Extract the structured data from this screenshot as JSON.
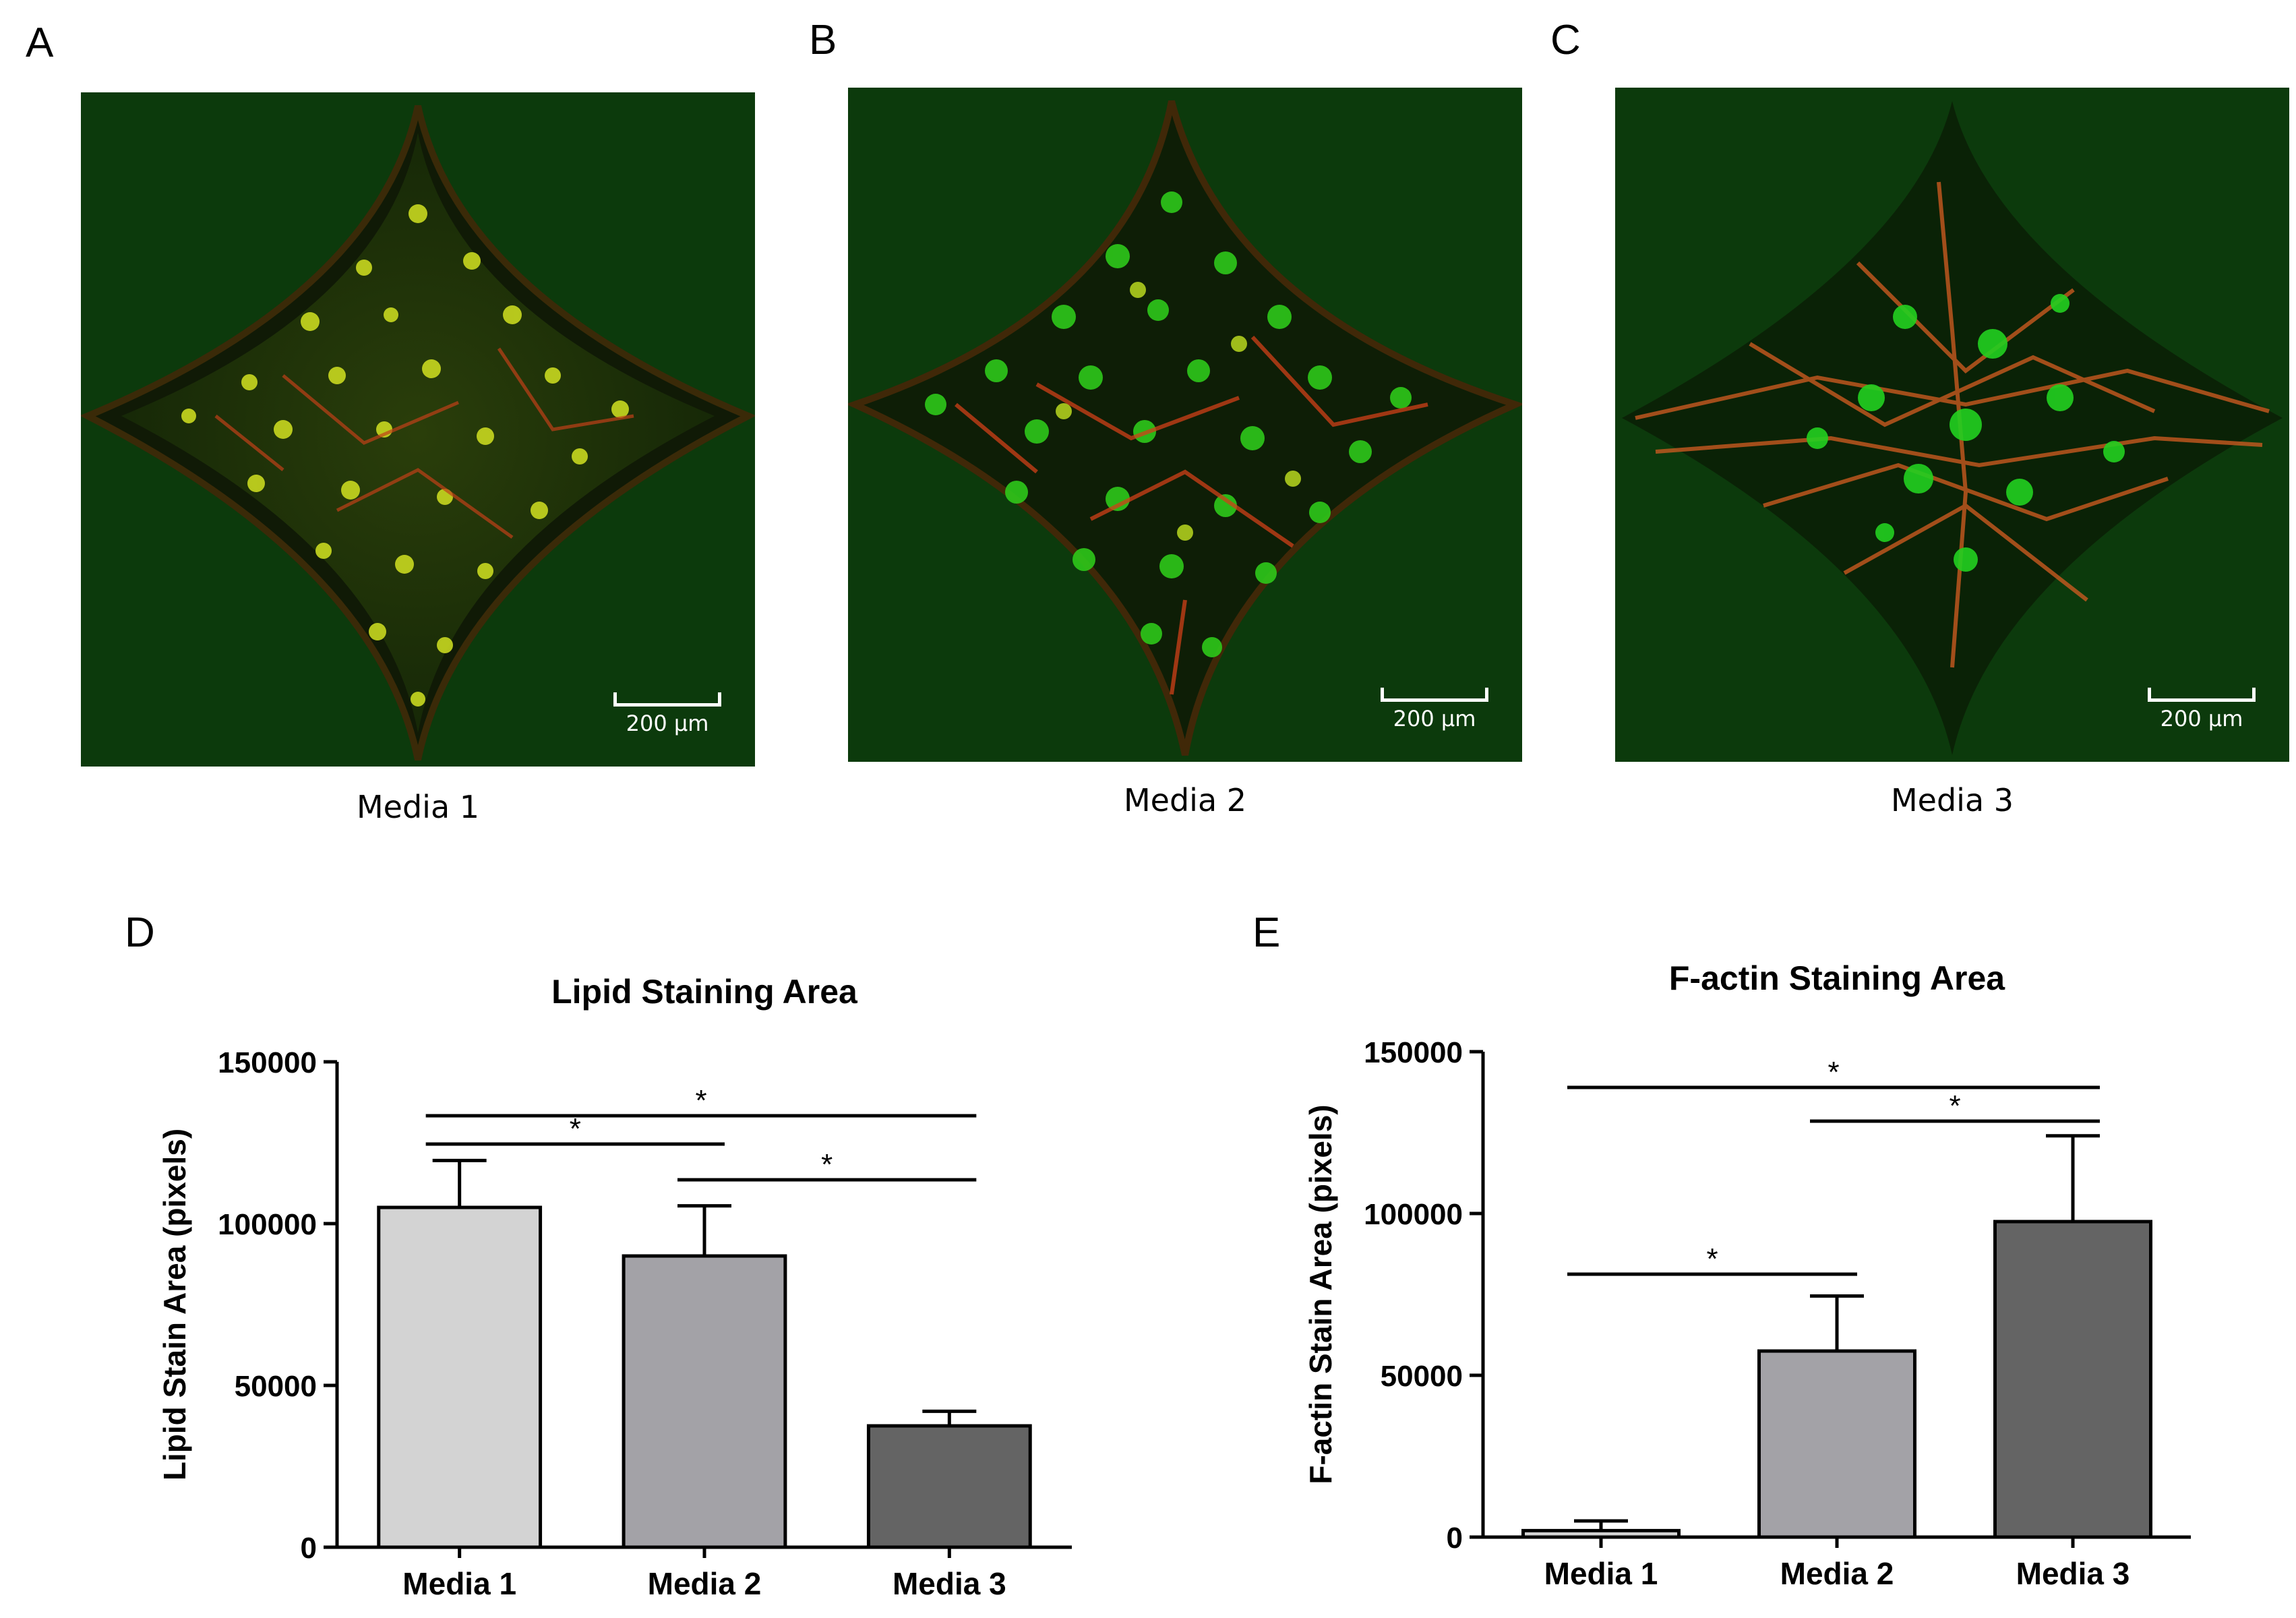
{
  "panels": [
    {
      "letter": "A",
      "caption": "Media 1",
      "scale_label": "200 µm"
    },
    {
      "letter": "B",
      "caption": "Media 2",
      "scale_label": "200 µm"
    },
    {
      "letter": "C",
      "caption": "Media 3",
      "scale_label": "200 µm"
    }
  ],
  "chart_letters": {
    "d": "D",
    "e": "E"
  },
  "colors": {
    "bar1": "#d3d3d3",
    "bar2": "#a3a2a7",
    "bar3": "#646464",
    "bg_micro": "#0c3a0c"
  },
  "chart_data": [
    {
      "type": "bar",
      "title": "Lipid Staining Area",
      "ylabel": "Lipid Stain Area (pixels)",
      "xlabel": "",
      "categories": [
        "Media 1",
        "Media 2",
        "Media 3"
      ],
      "values": [
        105000,
        90000,
        37500
      ],
      "errors": [
        14500,
        15500,
        4500
      ],
      "ylim": [
        0,
        150000
      ],
      "yticks": [
        0,
        50000,
        100000,
        150000
      ],
      "ytick_labels": [
        "0",
        "50000",
        "100000",
        "150000"
      ],
      "grid": false,
      "significance": [
        {
          "from": 0,
          "to": 2,
          "label": "*"
        },
        {
          "from": 0,
          "to": 1,
          "label": "*"
        },
        {
          "from": 1,
          "to": 2,
          "label": "*"
        }
      ]
    },
    {
      "type": "bar",
      "title": "F-actin Staining Area",
      "ylabel": "F-actin Stain Area (pixels)",
      "xlabel": "",
      "categories": [
        "Media 1",
        "Media 2",
        "Media 3"
      ],
      "values": [
        2000,
        57500,
        97500
      ],
      "errors": [
        3000,
        17000,
        26500
      ],
      "ylim": [
        0,
        150000
      ],
      "yticks": [
        0,
        50000,
        100000,
        150000
      ],
      "ytick_labels": [
        "0",
        "50000",
        "100000",
        "150000"
      ],
      "grid": false,
      "significance": [
        {
          "from": 0,
          "to": 2,
          "label": "*"
        },
        {
          "from": 1,
          "to": 2,
          "label": "*"
        },
        {
          "from": 0,
          "to": 1,
          "label": "*"
        }
      ]
    }
  ]
}
